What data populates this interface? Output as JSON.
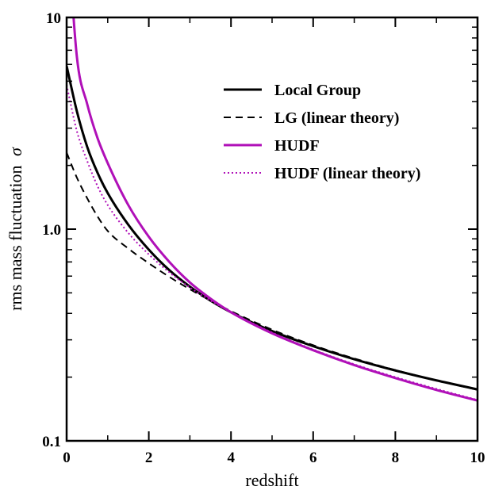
{
  "chart_data": {
    "type": "line",
    "xlabel": "redshift",
    "ylabel": "rms mass fluctuation",
    "ylabel_symbol": "σ",
    "xlim": [
      0,
      10
    ],
    "ylim": [
      0.1,
      10
    ],
    "yscale": "log",
    "x_ticks": [
      0,
      2,
      4,
      6,
      8,
      10
    ],
    "x_tick_labels": [
      "0",
      "2",
      "4",
      "6",
      "8",
      "10"
    ],
    "y_ticks": [
      0.1,
      1,
      10
    ],
    "y_tick_labels": [
      "0.1",
      "1.0",
      "10"
    ],
    "grid": false,
    "legend_position": "top-right",
    "colors": {
      "black": "#000000",
      "magenta": "#b010b8"
    },
    "x": [
      0,
      0.25,
      0.5,
      0.75,
      1,
      1.5,
      2,
      2.5,
      3,
      3.5,
      4,
      5,
      6,
      7,
      8,
      9,
      10
    ],
    "series": [
      {
        "name": "Local Group",
        "style": "solid",
        "color": "#000000",
        "values": [
          5.9,
          3.6,
          2.45,
          1.85,
          1.48,
          1.05,
          0.8,
          0.64,
          0.535,
          0.46,
          0.405,
          0.33,
          0.28,
          0.243,
          0.215,
          0.193,
          0.175
        ]
      },
      {
        "name": "LG (linear theory)",
        "style": "dashed",
        "color": "#000000",
        "values": [
          2.3,
          1.75,
          1.4,
          1.15,
          0.98,
          0.81,
          0.69,
          0.595,
          0.52,
          0.46,
          0.41,
          0.335,
          0.283,
          0.245,
          0.216,
          0.193,
          0.174
        ]
      },
      {
        "name": "HUDF",
        "style": "solid",
        "color": "#b010b8",
        "values": [
          30,
          6.5,
          3.9,
          2.7,
          2.05,
          1.3,
          0.92,
          0.7,
          0.56,
          0.47,
          0.405,
          0.322,
          0.268,
          0.228,
          0.198,
          0.174,
          0.155
        ]
      },
      {
        "name": "HUDF (linear theory)",
        "style": "dotted",
        "color": "#b010b8",
        "values": [
          4.8,
          2.9,
          2.1,
          1.6,
          1.3,
          0.96,
          0.76,
          0.625,
          0.53,
          0.46,
          0.405,
          0.325,
          0.27,
          0.23,
          0.2,
          0.176,
          0.156
        ]
      }
    ]
  }
}
